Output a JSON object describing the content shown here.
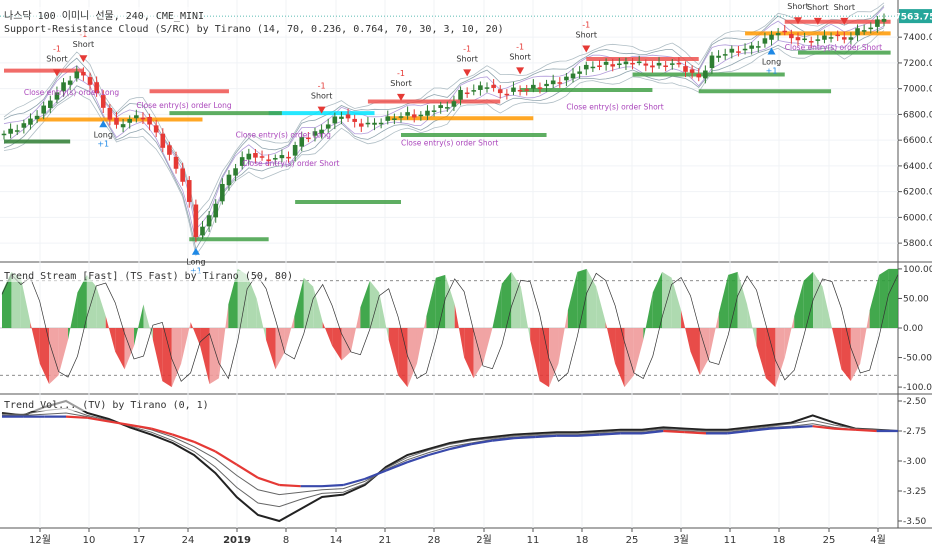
{
  "header": {
    "symbol_line": "나스닥 100 이미니 선물, 240, CME_MINI",
    "indicator_1": "Support-Resistance Cloud (S/RC) by Tirano (14, 70, 0.236, 0.764, 70, 30, 3, 10, 20)",
    "indicator_2": "Trend Stream [Fast] (TS Fast) by Tirano (50, 80)",
    "indicator_3": "Trend Vol... (TV) by Tirano (0, 1)"
  },
  "price_badge": "7563.75",
  "colors": {
    "up": "#2e7d32",
    "down": "#e53935",
    "cloud": "#9e9e9e",
    "green_fill": "#43a047",
    "red_fill": "#ef5350",
    "badge": "#26a69a",
    "short_arrow": "#e53935",
    "long_arrow": "#1e88e5",
    "order_text": "#ab47bc"
  },
  "x_axis": {
    "labels": [
      "12월",
      "10",
      "17",
      "24",
      "2019",
      "8",
      "14",
      "21",
      "28",
      "2월",
      "11",
      "18",
      "25",
      "3월",
      "11",
      "18",
      "25",
      "4월"
    ]
  },
  "chart_data": [
    {
      "type": "line",
      "title": "Support-Resistance Cloud (S/RC) by Tirano (14, 70, 0.236, 0.764, 70, 30, 3, 10, 20)",
      "ylim": [
        5700,
        7650
      ],
      "yticks": [
        "7400.00",
        "7200.00",
        "7000.00",
        "6800.00",
        "6600.00",
        "6400.00",
        "6200.00",
        "6000.00",
        "5800.00"
      ],
      "last_value": 7563.75,
      "price_path": [
        [
          0,
          6650
        ],
        [
          3,
          6720
        ],
        [
          6,
          6850
        ],
        [
          8,
          6980
        ],
        [
          10,
          7080
        ],
        [
          11,
          7130
        ],
        [
          13,
          7050
        ],
        [
          15,
          6850
        ],
        [
          17,
          6700
        ],
        [
          19,
          6770
        ],
        [
          21,
          6780
        ],
        [
          23,
          6650
        ],
        [
          25,
          6470
        ],
        [
          27,
          6290
        ],
        [
          28,
          6100
        ],
        [
          29,
          5860
        ],
        [
          31,
          6000
        ],
        [
          33,
          6250
        ],
        [
          35,
          6400
        ],
        [
          37,
          6500
        ],
        [
          39,
          6450
        ],
        [
          41,
          6460
        ],
        [
          43,
          6480
        ],
        [
          45,
          6620
        ],
        [
          47,
          6650
        ],
        [
          49,
          6730
        ],
        [
          51,
          6800
        ],
        [
          53,
          6730
        ],
        [
          55,
          6720
        ],
        [
          57,
          6750
        ],
        [
          59,
          6780
        ],
        [
          61,
          6800
        ],
        [
          63,
          6790
        ],
        [
          65,
          6850
        ],
        [
          67,
          6860
        ],
        [
          69,
          6970
        ],
        [
          71,
          6990
        ],
        [
          73,
          7030
        ],
        [
          75,
          6960
        ],
        [
          77,
          6990
        ],
        [
          79,
          7000
        ],
        [
          81,
          7020
        ],
        [
          83,
          7050
        ],
        [
          85,
          7080
        ],
        [
          87,
          7150
        ],
        [
          89,
          7180
        ],
        [
          91,
          7190
        ],
        [
          93,
          7190
        ],
        [
          95,
          7210
        ],
        [
          97,
          7180
        ],
        [
          99,
          7180
        ],
        [
          101,
          7200
        ],
        [
          103,
          7150
        ],
        [
          105,
          7080
        ],
        [
          107,
          7240
        ],
        [
          109,
          7280
        ],
        [
          111,
          7300
        ],
        [
          113,
          7320
        ],
        [
          115,
          7380
        ],
        [
          117,
          7450
        ],
        [
          119,
          7400
        ],
        [
          121,
          7370
        ],
        [
          123,
          7380
        ],
        [
          125,
          7420
        ],
        [
          127,
          7380
        ],
        [
          129,
          7450
        ],
        [
          131,
          7480
        ],
        [
          133,
          7560
        ]
      ],
      "signals": [
        {
          "label": "Short",
          "delta": "-1",
          "x": 8,
          "dir": "short"
        },
        {
          "label": "Short",
          "delta": "-1",
          "x": 12,
          "dir": "short"
        },
        {
          "label": "Long",
          "delta": "+1",
          "x": 15,
          "dir": "long"
        },
        {
          "label": "Long",
          "delta": "+1",
          "x": 29,
          "dir": "long"
        },
        {
          "label": "Short",
          "delta": "-1",
          "x": 48,
          "dir": "short"
        },
        {
          "label": "Short",
          "delta": "-1",
          "x": 60,
          "dir": "short"
        },
        {
          "label": "Short",
          "delta": "-1",
          "x": 70,
          "dir": "short"
        },
        {
          "label": "Short",
          "delta": "-1",
          "x": 78,
          "dir": "short"
        },
        {
          "label": "Short",
          "delta": "-1",
          "x": 88,
          "dir": "short"
        },
        {
          "label": "Long",
          "delta": "+1",
          "x": 116,
          "dir": "long"
        },
        {
          "label": "Short",
          "delta": "-1",
          "x": 120,
          "dir": "short"
        },
        {
          "label": "Short",
          "delta": "-1",
          "x": 123,
          "dir": "short"
        },
        {
          "label": "Short",
          "delta": "-1",
          "x": 127,
          "dir": "short"
        }
      ],
      "order_notes": [
        "Close entry(s) order Long",
        "Close entry(s) order Short"
      ]
    },
    {
      "type": "area",
      "title": "Trend Stream [Fast] (TS Fast) by Tirano (50, 80)",
      "ylim": [
        -110,
        110
      ],
      "yticks": [
        "100.00",
        "50.00",
        "0.00",
        "-50.00",
        "-100.00"
      ],
      "ref_lines": [
        80,
        -80
      ],
      "values": [
        60,
        95,
        85,
        10,
        -60,
        -95,
        -80,
        -20,
        60,
        90,
        70,
        20,
        -40,
        -70,
        -30,
        40,
        -20,
        -90,
        -100,
        -60,
        10,
        -30,
        -95,
        -85,
        40,
        100,
        90,
        50,
        -20,
        -70,
        -40,
        20,
        85,
        70,
        10,
        -30,
        -55,
        -40,
        35,
        80,
        60,
        -20,
        -80,
        -100,
        -60,
        20,
        85,
        90,
        40,
        -50,
        -85,
        -60,
        0,
        75,
        95,
        70,
        -20,
        -90,
        -100,
        -60,
        30,
        95,
        100,
        70,
        10,
        -60,
        -100,
        -80,
        -20,
        60,
        95,
        85,
        30,
        -40,
        -80,
        -50,
        25,
        90,
        95,
        40,
        -30,
        -85,
        -100,
        -50,
        20,
        80,
        95,
        70,
        0,
        -70,
        -90,
        -60,
        30,
        90,
        100,
        100
      ]
    },
    {
      "type": "line",
      "title": "Trend Vol... (TV) by Tirano (0, 1)",
      "ylim": [
        -3.55,
        -2.45
      ],
      "yticks": [
        "-2.50",
        "-2.75",
        "-3.00",
        "-3.25",
        "-3.50"
      ],
      "series": [
        {
          "values": [
            -2.6,
            -2.62,
            -2.55,
            -2.5,
            -2.6,
            -2.65,
            -2.72,
            -2.78,
            -2.85,
            -2.95,
            -3.1,
            -3.3,
            -3.45,
            -3.5,
            -3.4,
            -3.3,
            -3.28,
            -3.2,
            -3.05,
            -2.95,
            -2.9,
            -2.85,
            -2.82,
            -2.8,
            -2.78,
            -2.77,
            -2.76,
            -2.76,
            -2.75,
            -2.74,
            -2.74,
            -2.72,
            -2.73,
            -2.74,
            -2.74,
            -2.72,
            -2.7,
            -2.68,
            -2.62,
            -2.68,
            -2.73,
            -2.74,
            -2.75
          ]
        },
        {
          "values": [
            -2.61,
            -2.61,
            -2.58,
            -2.56,
            -2.62,
            -2.66,
            -2.71,
            -2.76,
            -2.83,
            -2.92,
            -3.05,
            -3.22,
            -3.35,
            -3.38,
            -3.32,
            -3.27,
            -3.26,
            -3.19,
            -3.06,
            -2.97,
            -2.91,
            -2.86,
            -2.83,
            -2.81,
            -2.79,
            -2.78,
            -2.77,
            -2.77,
            -2.76,
            -2.75,
            -2.75,
            -2.73,
            -2.74,
            -2.75,
            -2.75,
            -2.73,
            -2.71,
            -2.69,
            -2.66,
            -2.7,
            -2.73,
            -2.74,
            -2.75
          ]
        },
        {
          "values": [
            -2.62,
            -2.62,
            -2.61,
            -2.6,
            -2.63,
            -2.67,
            -2.7,
            -2.74,
            -2.8,
            -2.88,
            -2.98,
            -3.12,
            -3.24,
            -3.28,
            -3.26,
            -3.24,
            -3.23,
            -3.17,
            -3.07,
            -2.99,
            -2.93,
            -2.88,
            -2.85,
            -2.82,
            -2.8,
            -2.79,
            -2.78,
            -2.78,
            -2.77,
            -2.76,
            -2.76,
            -2.74,
            -2.75,
            -2.76,
            -2.76,
            -2.74,
            -2.72,
            -2.71,
            -2.69,
            -2.72,
            -2.74,
            -2.75,
            -2.75
          ]
        },
        {
          "values": [
            -2.63,
            -2.63,
            -2.63,
            -2.63,
            -2.64,
            -2.67,
            -2.7,
            -2.73,
            -2.78,
            -2.84,
            -2.92,
            -3.03,
            -3.14,
            -3.2,
            -3.21,
            -3.21,
            -3.2,
            -3.15,
            -3.08,
            -3.01,
            -2.95,
            -2.9,
            -2.86,
            -2.83,
            -2.81,
            -2.8,
            -2.79,
            -2.79,
            -2.78,
            -2.77,
            -2.77,
            -2.75,
            -2.76,
            -2.77,
            -2.77,
            -2.75,
            -2.73,
            -2.72,
            -2.71,
            -2.73,
            -2.74,
            -2.75,
            -2.75
          ]
        }
      ]
    }
  ]
}
